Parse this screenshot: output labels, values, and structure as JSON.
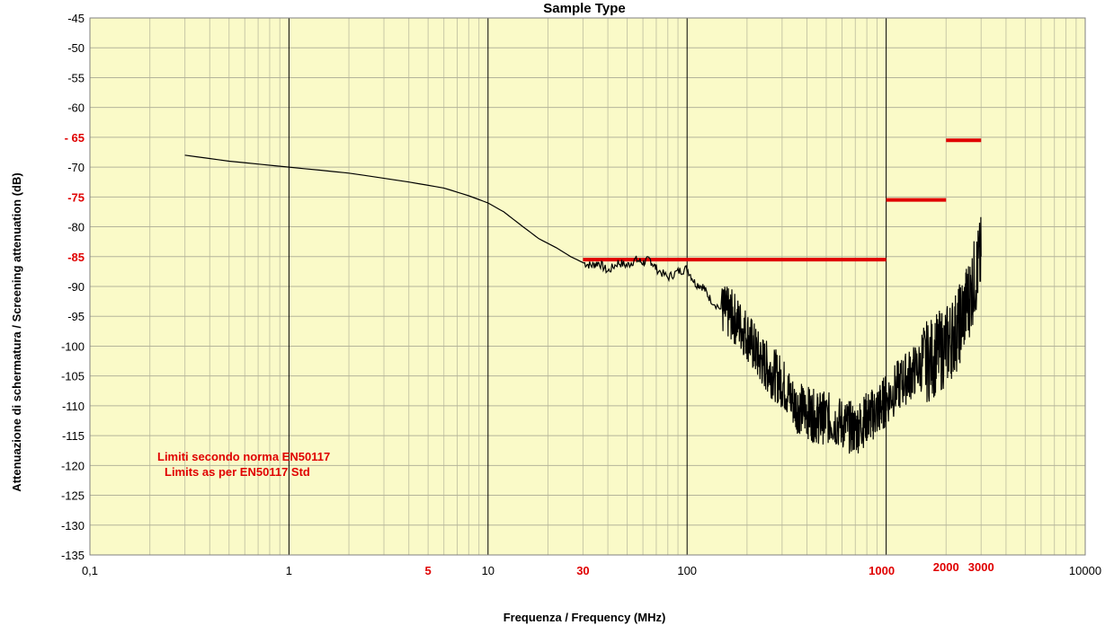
{
  "chart_data": {
    "type": "line",
    "title": "Sample Type",
    "xlabel": "Frequenza / Frequency (MHz)",
    "ylabel": "Attenuazione di schermatura / Screening attenuation (dB)",
    "x_scale": "log",
    "xlim": [
      0.1,
      10000
    ],
    "ylim": [
      -135,
      -45
    ],
    "grid": true,
    "background": "#fafac8",
    "x_ticks": [
      {
        "value": 0.1,
        "label": "0,1"
      },
      {
        "value": 1,
        "label": "1"
      },
      {
        "value": 10,
        "label": "10"
      },
      {
        "value": 100,
        "label": "100"
      },
      {
        "value": 1000,
        "label": "1000"
      },
      {
        "value": 10000,
        "label": "10000"
      }
    ],
    "x_ticks_highlight": [
      {
        "value": 5,
        "label": "5"
      },
      {
        "value": 30,
        "label": "30"
      },
      {
        "value": 1000,
        "label": "1000"
      },
      {
        "value": 2000,
        "label": "2000"
      },
      {
        "value": 3000,
        "label": "3000"
      }
    ],
    "y_ticks": [
      -45,
      -50,
      -55,
      -60,
      -65,
      -70,
      -75,
      -80,
      -85,
      -90,
      -95,
      -100,
      -105,
      -110,
      -115,
      -120,
      -125,
      -130,
      -135
    ],
    "y_ticks_highlight": [
      -65,
      -75,
      -85
    ],
    "y_tick_labels": {
      "-45": "-45",
      "-50": "-50",
      "-55": "-55",
      "-60": "-60",
      "-65": "- 65",
      "-70": "-70",
      "-75": "-75",
      "-80": "-80",
      "-85": "-85",
      "-90": "-90",
      "-95": "-95",
      "-100": "-100",
      "-105": "-105",
      "-110": "-110",
      "-115": "-115",
      "-120": "-120",
      "-125": "-125",
      "-130": "-130",
      "-135": "-135"
    },
    "series": [
      {
        "color": "#000000",
        "values_x": [
          0.3,
          0.5,
          1,
          2,
          4,
          6,
          8,
          10,
          12,
          15,
          18,
          22,
          26,
          30,
          33,
          36,
          40,
          45,
          50,
          55,
          60,
          65,
          70,
          80,
          90,
          100,
          110,
          120,
          130,
          150,
          170,
          200,
          230,
          260,
          300,
          350,
          400,
          450,
          500,
          600,
          700,
          800,
          900,
          1000,
          1200,
          1400,
          1700,
          2000,
          2300,
          2600,
          3000
        ],
        "values_y": [
          -68,
          -69,
          -70,
          -71,
          -72.5,
          -73.5,
          -74.8,
          -76,
          -77.5,
          -80,
          -82,
          -83.5,
          -85,
          -86,
          -86.5,
          -86,
          -87.5,
          -86,
          -86.5,
          -85.5,
          -86,
          -85.5,
          -87,
          -88.5,
          -87.5,
          -87,
          -89.5,
          -90,
          -92,
          -94,
          -95,
          -98,
          -102,
          -104,
          -106,
          -110,
          -111,
          -112,
          -112,
          -113,
          -114,
          -112,
          -111,
          -109,
          -106,
          -104,
          -102,
          -100,
          -97,
          -92,
          -85
        ]
      }
    ],
    "limit_lines": [
      {
        "x_start": 30,
        "x_end": 1000,
        "y": -85.5,
        "color": "#e00000"
      },
      {
        "x_start": 1000,
        "x_end": 2000,
        "y": -75.5,
        "color": "#e00000"
      },
      {
        "x_start": 2000,
        "x_end": 3000,
        "y": -65.5,
        "color": "#e00000"
      }
    ],
    "annotations": [
      "Limiti secondo  norma EN50117",
      "Limits  as  per EN50117   Std"
    ]
  }
}
